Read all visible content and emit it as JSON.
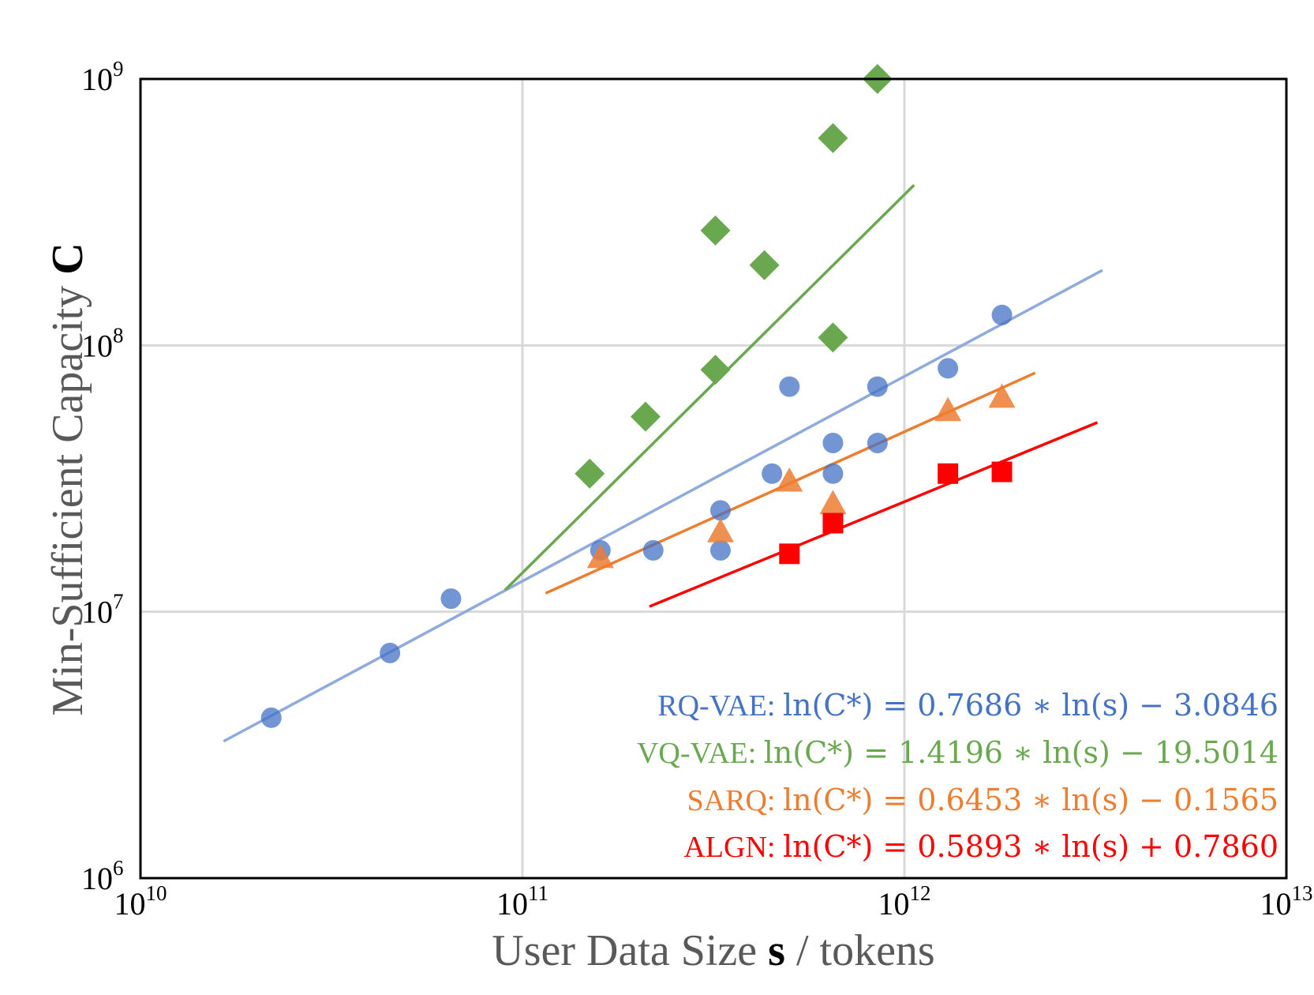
{
  "chart_data": {
    "type": "scatter",
    "xlabel": {
      "main": "User Data Size ",
      "bold": "s",
      "tail": " / tokens"
    },
    "ylabel": {
      "main": "Min-Sufficient Capacity ",
      "bold": "C"
    },
    "xscale": "log",
    "yscale": "log",
    "xlim": [
      10000000000.0,
      10000000000000.0
    ],
    "ylim": [
      1000000.0,
      1000000000.0
    ],
    "x_ticks": [
      {
        "base": "10",
        "exp": "10"
      },
      {
        "base": "10",
        "exp": "11"
      },
      {
        "base": "10",
        "exp": "12"
      },
      {
        "base": "10",
        "exp": "13"
      }
    ],
    "y_ticks": [
      {
        "base": "10",
        "exp": "6"
      },
      {
        "base": "10",
        "exp": "7"
      },
      {
        "base": "10",
        "exp": "8"
      },
      {
        "base": "10",
        "exp": "9"
      }
    ],
    "grid": true,
    "series": [
      {
        "name": "RQ-VAE",
        "color": "#4472C4",
        "line_color": "#8FAADC",
        "marker": "circle",
        "points": [
          [
            22000000000.0,
            4000000.0
          ],
          [
            45000000000.0,
            7000000.0
          ],
          [
            65000000000.0,
            11200000.0
          ],
          [
            160000000000.0,
            17000000.0
          ],
          [
            220000000000.0,
            17000000.0
          ],
          [
            330000000000.0,
            17000000.0
          ],
          [
            330000000000.0,
            24000000.0
          ],
          [
            450000000000.0,
            33000000.0
          ],
          [
            500000000000.0,
            70000000.0
          ],
          [
            650000000000.0,
            33000000.0
          ],
          [
            650000000000.0,
            43000000.0
          ],
          [
            850000000000.0,
            43000000.0
          ],
          [
            850000000000.0,
            70000000.0
          ],
          [
            1300000000000.0,
            82000000.0
          ],
          [
            1800000000000.0,
            130000000.0
          ]
        ],
        "fit_x": [
          16500000000.0,
          3300000000000.0
        ],
        "equation": {
          "name": "RQ-VAE:  ",
          "formula": "ln(C*) = 0.7686 ∗ ln(s) − 3.0846"
        }
      },
      {
        "name": "VQ-VAE",
        "color": "#6AA84F",
        "line_color": "#6AA84F",
        "marker": "diamond",
        "points": [
          [
            150000000000.0,
            33000000.0
          ],
          [
            210000000000.0,
            54000000.0
          ],
          [
            320000000000.0,
            81000000.0
          ],
          [
            320000000000.0,
            270000000.0
          ],
          [
            430000000000.0,
            200000000.0
          ],
          [
            650000000000.0,
            107000000.0
          ],
          [
            650000000000.0,
            600000000.0
          ],
          [
            850000000000.0,
            1000000000.0
          ]
        ],
        "fit_x": [
          90000000000.0,
          1060000000000.0
        ],
        "equation": {
          "name": "VQ-VAE: ",
          "formula": "ln(C*) = 1.4196 ∗ ln(s) − 19.5014"
        }
      },
      {
        "name": "SARQ",
        "color": "#ED7D31",
        "line_color": "#ED7D31",
        "marker": "triangle",
        "points": [
          [
            160000000000.0,
            16000000.0
          ],
          [
            330000000000.0,
            20000000.0
          ],
          [
            500000000000.0,
            31000000.0
          ],
          [
            650000000000.0,
            25500000.0
          ],
          [
            1300000000000.0,
            57000000.0
          ],
          [
            1800000000000.0,
            64000000.0
          ]
        ],
        "fit_x": [
          115000000000.0,
          2200000000000.0
        ],
        "equation": {
          "name": "SARQ: ",
          "formula": "ln(C*) = 0.6453 ∗ ln(s) − 0.1565"
        }
      },
      {
        "name": "ALGN",
        "color": "#FF0000",
        "line_color": "#FF0000",
        "marker": "square",
        "points": [
          [
            500000000000.0,
            16500000.0
          ],
          [
            650000000000.0,
            21500000.0
          ],
          [
            1300000000000.0,
            33000000.0
          ],
          [
            1800000000000.0,
            33500000.0
          ]
        ],
        "fit_x": [
          215000000000.0,
          3200000000000.0
        ],
        "equation": {
          "name": "ALGN: ",
          "formula": "ln(C*) = 0.5893 ∗ ln(s) + 0.7860"
        }
      }
    ]
  }
}
